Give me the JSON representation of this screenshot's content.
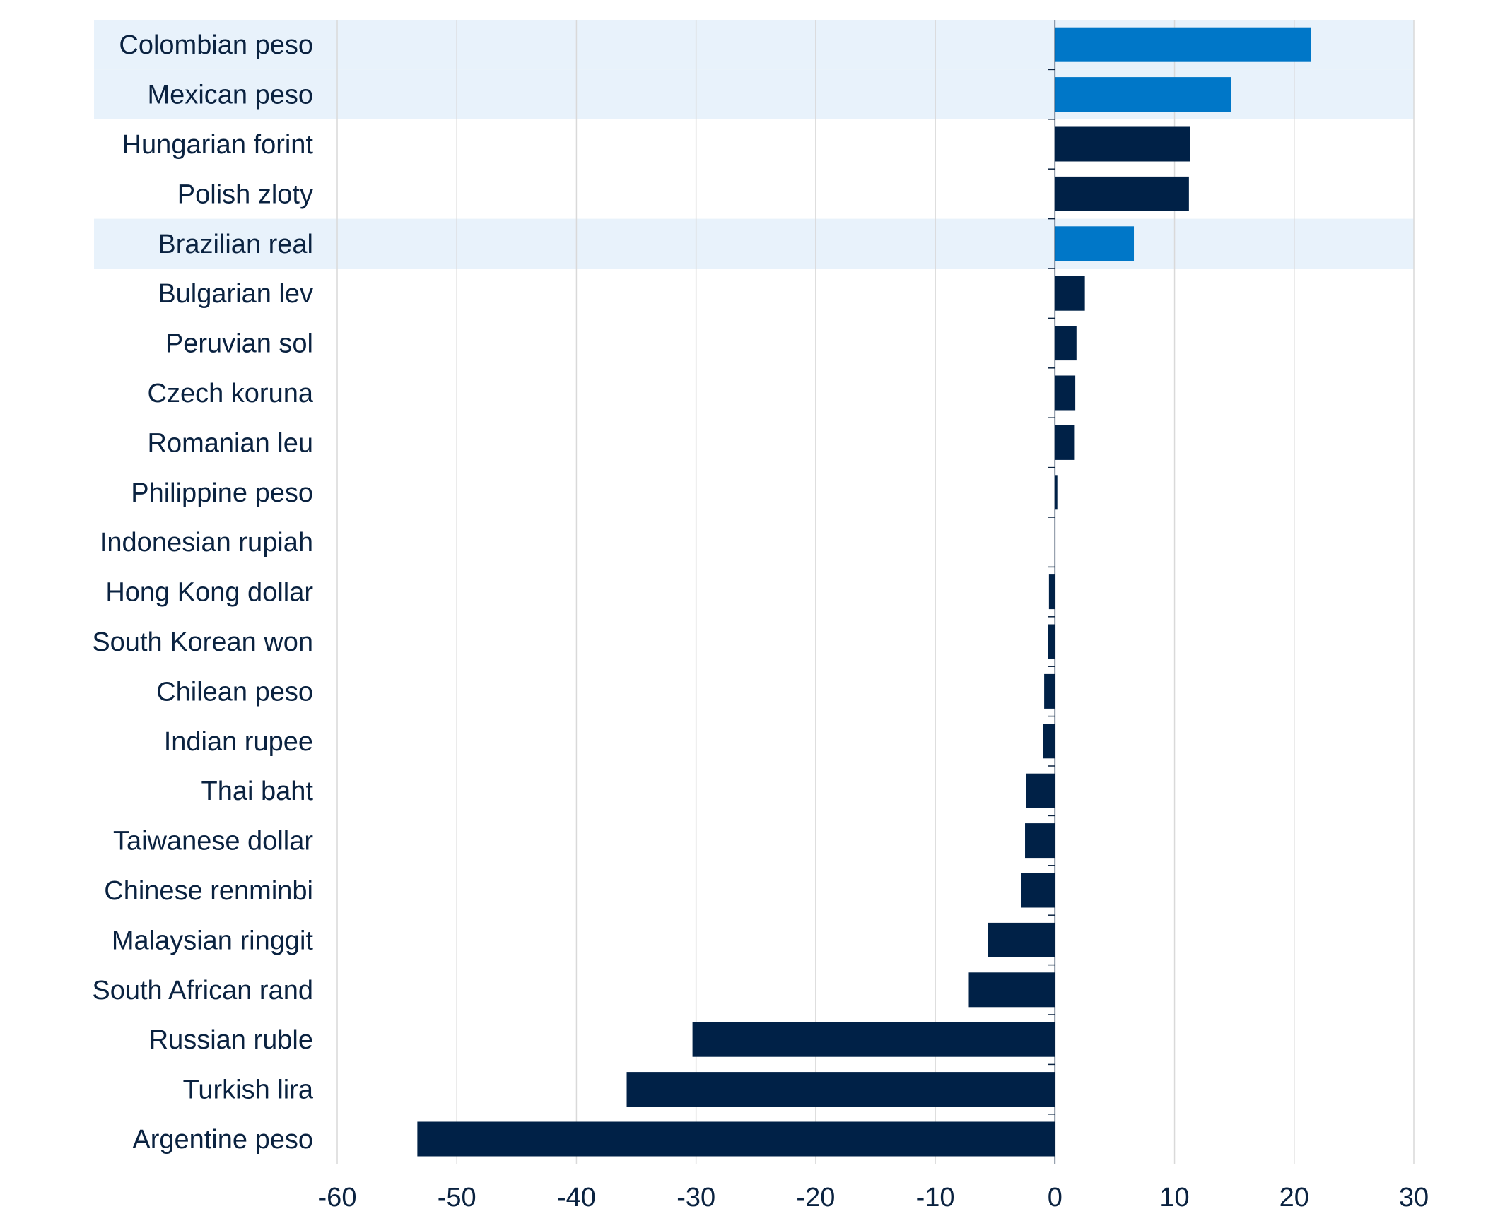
{
  "chart_data": {
    "type": "bar",
    "orientation": "horizontal",
    "categories": [
      "Colombian peso",
      "Mexican peso",
      "Hungarian forint",
      "Polish zloty",
      "Brazilian real",
      "Bulgarian lev",
      "Peruvian sol",
      "Czech koruna",
      "Romanian leu",
      "Philippine peso",
      "Indonesian rupiah",
      "Hong Kong dollar",
      "South Korean won",
      "Chilean peso",
      "Indian rupee",
      "Thai baht",
      "Taiwanese dollar",
      "Chinese renminbi",
      "Malaysian ringgit",
      "South African rand",
      "Russian ruble",
      "Turkish lira",
      "Argentine peso"
    ],
    "values": [
      21.4,
      14.7,
      11.3,
      11.2,
      6.6,
      2.5,
      1.8,
      1.7,
      1.6,
      0.2,
      0.0,
      -0.5,
      -0.6,
      -0.9,
      -1.0,
      -2.4,
      -2.5,
      -2.8,
      -5.6,
      -7.2,
      -30.3,
      -35.8,
      -53.3
    ],
    "highlighted": [
      "Colombian peso",
      "Mexican peso",
      "Brazilian real"
    ],
    "xlim": [
      -60,
      30
    ],
    "xticks": [
      "-60",
      "-50",
      "-40",
      "-30",
      "-20",
      "-10",
      "0",
      "10",
      "20",
      "30"
    ],
    "title": "",
    "xlabel": "",
    "ylabel": "",
    "grid": "vertical",
    "colors": {
      "bar": "#002147",
      "bar_highlight": "#0077c8",
      "band_highlight": "#e8f2fb",
      "grid": "#d9d9d9",
      "axis": "#0a2240",
      "text": "#0a2240"
    }
  }
}
